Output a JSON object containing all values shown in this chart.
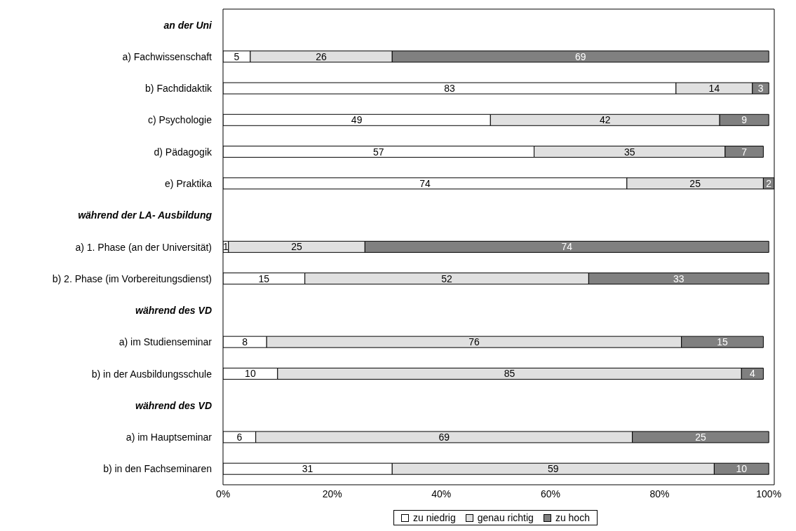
{
  "chart_data": {
    "type": "bar",
    "orientation": "horizontal",
    "stacked": true,
    "data_labels": true,
    "grid": false,
    "legend": "bottom",
    "categories": [
      "an der Uni",
      "a) Fachwissenschaft",
      "b) Fachdidaktik",
      "c) Psychologie",
      "d) Pädagogik",
      "e) Praktika",
      "während der LA- Ausbildung",
      "a) 1. Phase (an der Universität)",
      "b) 2. Phase (im Vorbereitungsdienst)",
      "während des VD",
      "a) im Studienseminar",
      "b) in der Ausbildungsschule",
      "während des VD",
      "a) im Hauptseminar",
      "b) in den Fachseminaren"
    ],
    "series": [
      {
        "name": "zu niedrig",
        "color": "#ffffff",
        "values": [
          null,
          5,
          83,
          49,
          57,
          74,
          null,
          1,
          15,
          null,
          8,
          10,
          null,
          6,
          31
        ]
      },
      {
        "name": "genau richtig",
        "color": "#e0e0e0",
        "values": [
          null,
          26,
          14,
          42,
          35,
          25,
          null,
          25,
          52,
          null,
          76,
          85,
          null,
          69,
          59
        ]
      },
      {
        "name": "zu hoch",
        "color": "#808080",
        "values": [
          null,
          69,
          3,
          9,
          7,
          2,
          null,
          74,
          33,
          null,
          15,
          4,
          null,
          25,
          10
        ]
      }
    ],
    "xlim": [
      0,
      101
    ],
    "xticks": [
      {
        "value": 0,
        "label": "0%"
      },
      {
        "value": 20,
        "label": "20%"
      },
      {
        "value": 40,
        "label": "40%"
      },
      {
        "value": 60,
        "label": "60%"
      },
      {
        "value": 80,
        "label": "80%"
      },
      {
        "value": 100,
        "label": "100%"
      }
    ]
  }
}
